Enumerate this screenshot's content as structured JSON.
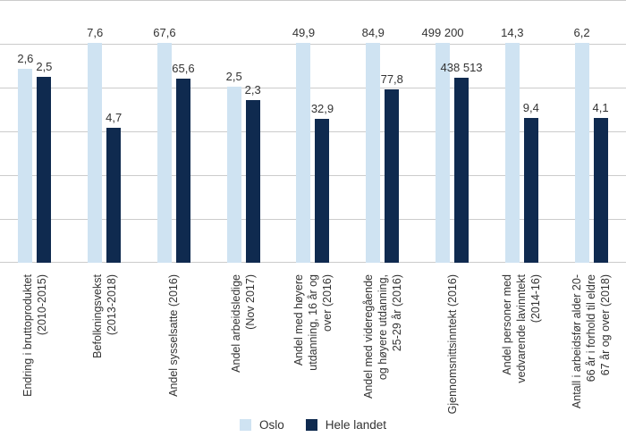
{
  "chart_data": {
    "type": "bar",
    "title": "",
    "xlabel": "",
    "ylabel": "",
    "grid": true,
    "gridline_count": 7,
    "gridline_color": "#cbcbcb",
    "legend_position": "bottom",
    "categories": [
      "Endring i bruttoproduktet\n(2010-2015)",
      "Befolkningsvekst\n(2013-2018)",
      "Andel sysselsatte (2016)",
      "Andel arbeidsledige\n(Nov 2017)",
      "Andel med høyere\nutdanning, 16 år og\nover (2016)",
      "Andel med videregående\nog høyere utdanning,\n25-29 år (2016)",
      "Gjennomsnittsinntekt (2016)",
      "Andel personer med\nvedvarende lavinntekt\n(2014-16)",
      "Antall i arbeidsfør alder 20-\n66 år i forhold til eldre\n67 år og over (2018)"
    ],
    "series": [
      {
        "name": "Oslo",
        "color": "#cfe3f2",
        "values": [
          2.6,
          7.6,
          67.6,
          2.5,
          49.9,
          84.9,
          499200,
          14.3,
          6.2
        ],
        "value_labels": [
          "2,6",
          "7,6",
          "67,6",
          "2,5",
          "49,9",
          "84,9",
          "499 200",
          "14,3",
          "6,2"
        ],
        "bar_height_pct": [
          73.8,
          83.7,
          83.7,
          67.0,
          83.7,
          83.7,
          83.7,
          83.7,
          83.7
        ]
      },
      {
        "name": "Hele landet",
        "color": "#0f2a4f",
        "values": [
          2.5,
          4.7,
          65.6,
          2.3,
          32.9,
          77.8,
          438513,
          9.4,
          4.1
        ],
        "value_labels": [
          "2,5",
          "4,7",
          "65,6",
          "2,3",
          "32,9",
          "77,8",
          "438 513",
          "9,4",
          "4,1"
        ],
        "bar_height_pct": [
          70.7,
          51.4,
          70.1,
          61.9,
          54.8,
          66.0,
          70.4,
          55.1,
          55.1
        ]
      }
    ]
  },
  "legend": {
    "oslo_label": "Oslo",
    "country_label": "Hele landet"
  }
}
